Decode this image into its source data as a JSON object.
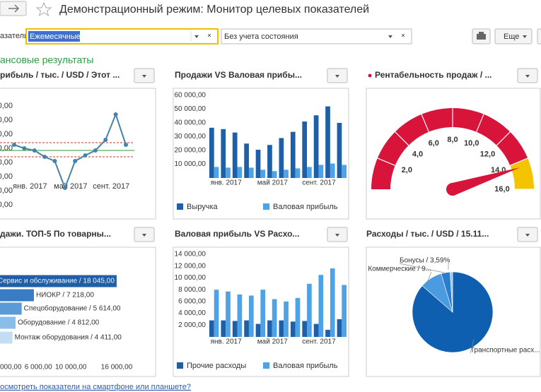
{
  "header": {
    "title": "Демонстрационный режим: Монитор целевых показателей"
  },
  "filters": {
    "label": "азатели:",
    "period": "Ежемесячные",
    "state": "Без учета состояния",
    "more_button": "Еще"
  },
  "section_title": "ансовые результаты",
  "panels": [
    {
      "title": "рибыль / тыс. / USD / Этот ...",
      "chart": {
        "type": "line",
        "color": "#4682a9",
        "categories": [
          null,
          "янв. 2017",
          null,
          null,
          null,
          "май 2017",
          null,
          null,
          null,
          "сент. 2017",
          null,
          null
        ],
        "values": [
          4.25,
          4.0,
          3.85,
          3.4,
          3.1,
          1.2,
          3.1,
          3.5,
          3.85,
          4.6,
          6.4,
          4.25
        ],
        "ylim": [
          0,
          7
        ],
        "yticks": [
          {
            "value": 0,
            "label": "000,00"
          },
          {
            "value": 1,
            "label": "000,00"
          },
          {
            "value": 2,
            "label": "000,00"
          },
          {
            "value": 3,
            "label": "000,00"
          },
          {
            "value": 4,
            "label": "000,00"
          },
          {
            "value": 5,
            "label": "000,00"
          },
          {
            "value": 6,
            "label": "000,00"
          },
          {
            "value": 7,
            "label": "0 000,00"
          }
        ],
        "reference_lines": [
          {
            "value": 4.4,
            "color": "#c0392b"
          },
          {
            "value": 3.85,
            "color": "#2e9a3e"
          },
          {
            "value": 3.4,
            "color": "#c0392b"
          }
        ]
      }
    },
    {
      "title": "Продажи VS Валовая прибы...",
      "chart": {
        "type": "bar",
        "categories": [
          null,
          "янв. 2017",
          null,
          null,
          null,
          "май 2017",
          null,
          null,
          null,
          "сент. 2017",
          null,
          null
        ],
        "series": [
          {
            "name": "Выручка",
            "color": "#1f5fa8",
            "values": [
              36500,
              35500,
              33000,
              25000,
              20500,
              24000,
              29000,
              33500,
              41000,
              45500,
              52000,
              40000
            ]
          },
          {
            "name": "Валовая прибыль",
            "color": "#4ea3e6",
            "values": [
              8000,
              7500,
              8000,
              7500,
              6000,
              5000,
              6000,
              7000,
              8000,
              9500,
              10500,
              9500
            ]
          }
        ],
        "ylim": [
          0,
          60000
        ],
        "yticks": [
          {
            "value": 10000,
            "label": "10 000,00"
          },
          {
            "value": 20000,
            "label": "20 000,00"
          },
          {
            "value": 30000,
            "label": "30 000,00"
          },
          {
            "value": 40000,
            "label": "40 000,00"
          },
          {
            "value": 50000,
            "label": "50 000,00"
          },
          {
            "value": 60000,
            "label": "60 000,00"
          }
        ]
      }
    },
    {
      "title": "Рентабельность продаж / ...",
      "chart": {
        "type": "gauge",
        "value": 14.4,
        "needle_color": "#d9143a",
        "scale": [
          0,
          16
        ],
        "bands": [
          {
            "from": 0,
            "to": 14,
            "color": "#d9143a"
          },
          {
            "from": 14,
            "to": 16,
            "color": "#f5c400"
          }
        ],
        "ticks": [
          {
            "value": 2,
            "label": "2,0"
          },
          {
            "value": 4,
            "label": "4,0"
          },
          {
            "value": 6,
            "label": "6,0"
          },
          {
            "value": 8,
            "label": "8,0"
          },
          {
            "value": 10,
            "label": "10,0"
          },
          {
            "value": 12,
            "label": "12,0"
          },
          {
            "value": 14,
            "label": "14,0"
          },
          {
            "value": 16,
            "label": "16,0"
          }
        ]
      }
    },
    {
      "title": "дажи. ТОП-5 По товарны...",
      "chart": {
        "type": "hbar",
        "values": [
          18045,
          7218,
          5614,
          4812,
          4411
        ],
        "value_labels": [
          "Сервис и обслуживание / 18 045,00",
          "НИОКР / 7 218,00",
          "Спецоборудование / 5 614,00",
          "Оборудование / 4 812,00",
          "Монтаж оборудования / 4 411,00"
        ],
        "colors": [
          "#1f5fa8",
          "#3a7cc4",
          "#5a9ad6",
          "#8bbde8",
          "#c5ddf3"
        ],
        "xlim": [
          0,
          18000
        ],
        "xticks": [
          {
            "value": 2000,
            "label": "2 000,00"
          },
          {
            "value": 6000,
            "label": "6 000,00"
          },
          {
            "value": 10000,
            "label": "10 000,00"
          },
          {
            "value": 16000,
            "label": "16 000,00"
          }
        ]
      }
    },
    {
      "title": "Валовая прибыль VS Расхо...",
      "chart": {
        "type": "bar",
        "categories": [
          null,
          "янв. 2017",
          null,
          null,
          null,
          "май 2017",
          null,
          null,
          null,
          "сент. 2017",
          null,
          null
        ],
        "series": [
          {
            "name": "Прочие расходы",
            "color": "#1f5fa8",
            "values": [
              2800,
              2800,
              2700,
              2800,
              2200,
              2800,
              2800,
              2600,
              2700,
              2200,
              1200,
              3000
            ]
          },
          {
            "name": "Валовая прибыль",
            "color": "#4ea3e6",
            "values": [
              8000,
              7700,
              7200,
              7000,
              8000,
              6400,
              6000,
              6600,
              9000,
              10500,
              11600,
              8800
            ]
          }
        ],
        "ylim": [
          0,
          14000
        ],
        "yticks": [
          {
            "value": 2000,
            "label": "2 000,00"
          },
          {
            "value": 4000,
            "label": "4 000,00"
          },
          {
            "value": 6000,
            "label": "6 000,00"
          },
          {
            "value": 8000,
            "label": "8 000,00"
          },
          {
            "value": 10000,
            "label": "10 000,00"
          },
          {
            "value": 12000,
            "label": "12 000,00"
          },
          {
            "value": 14000,
            "label": "14 000,00"
          }
        ]
      }
    },
    {
      "title": "Расходы / тыс. / USD / 15.11...",
      "chart": {
        "type": "pie",
        "values": [
          86.41,
          9,
          3.59,
          1
        ],
        "value_labels": [
          "Транспортные расх...",
          "Коммерческие / 9...",
          "Бонусы / 3,59%",
          null
        ],
        "colors": [
          "#0e5fb0",
          "#4a9be0",
          "#2a7ccc",
          "#9cc8ee"
        ]
      }
    }
  ],
  "footer_link": "осмотреть показатели на смартфоне или планшете?"
}
